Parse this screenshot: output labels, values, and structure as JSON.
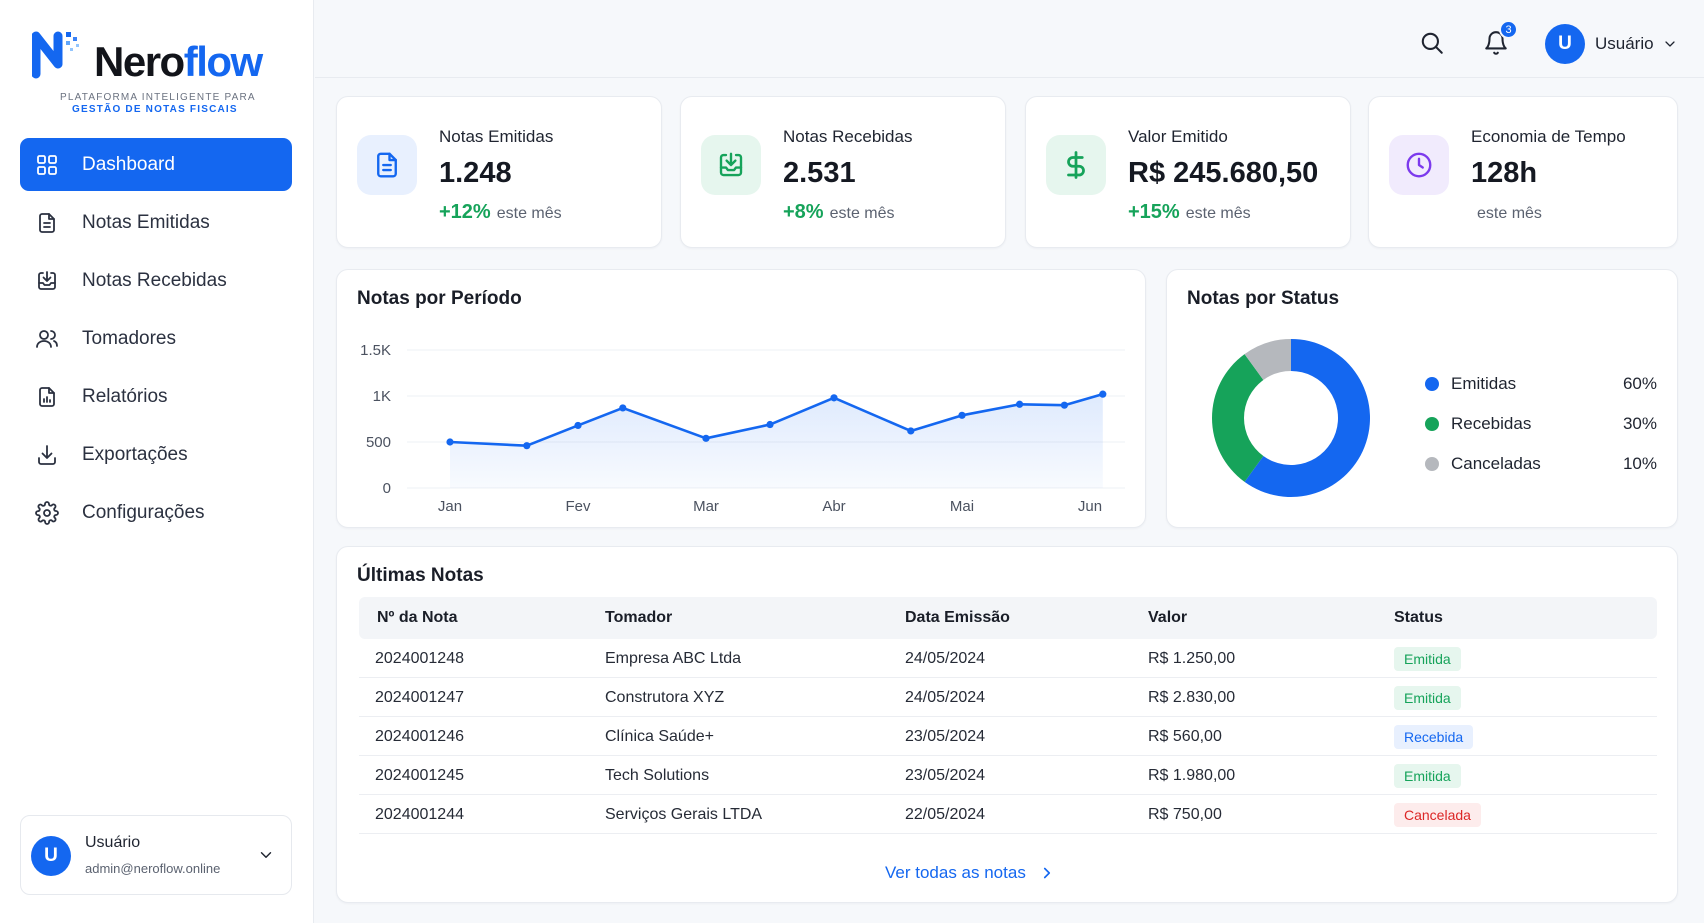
{
  "brand": {
    "name_part1": "Nero",
    "name_part2": "flow",
    "tagline_line1": "PLATAFORMA INTELIGENTE PARA",
    "tagline_line2": "GESTÃO DE NOTAS FISCAIS",
    "accent": "#1467f0"
  },
  "sidebar": {
    "items": [
      {
        "label": "Dashboard",
        "icon": "grid-icon",
        "active": true
      },
      {
        "label": "Notas Emitidas",
        "icon": "document-icon"
      },
      {
        "label": "Notas Recebidas",
        "icon": "inbox-download-icon"
      },
      {
        "label": "Tomadores",
        "icon": "users-icon"
      },
      {
        "label": "Relatórios",
        "icon": "report-icon"
      },
      {
        "label": "Exportações",
        "icon": "export-icon"
      },
      {
        "label": "Configurações",
        "icon": "gear-icon"
      }
    ],
    "user": {
      "initial": "U",
      "name": "Usuário",
      "email": "admin@neroflow.online"
    }
  },
  "topbar": {
    "notifications_count": "3",
    "user_initial": "U",
    "user_name": "Usuário"
  },
  "stats": [
    {
      "label": "Notas Emitidas",
      "value": "1.248",
      "trend": "+12%",
      "trend_suffix": "este mês",
      "icon": "document-icon",
      "icon_color": "#1467f0",
      "icon_bg": "#e8f0fe"
    },
    {
      "label": "Notas Recebidas",
      "value": "2.531",
      "trend": "+8%",
      "trend_suffix": "este mês",
      "icon": "inbox-download-icon",
      "icon_color": "#16a35a",
      "icon_bg": "#e6f6ee"
    },
    {
      "label": "Valor Emitido",
      "value": "R$ 245.680,50",
      "trend": "+15%",
      "trend_suffix": "este mês",
      "icon": "dollar-icon",
      "icon_color": "#16a35a",
      "icon_bg": "#e6f6ee"
    },
    {
      "label": "Economia de Tempo",
      "value": "128h",
      "trend": "",
      "trend_suffix": "este mês",
      "icon": "clock-icon",
      "icon_color": "#7c3aed",
      "icon_bg": "#f1ebfd"
    }
  ],
  "chart_data": [
    {
      "type": "area",
      "title": "Notas por Período",
      "xlabel": "",
      "ylabel": "",
      "x_ticks": [
        "Jan",
        "Fev",
        "Mar",
        "Abr",
        "Mai",
        "Jun"
      ],
      "y_ticks": [
        "0",
        "500",
        "1K",
        "1.5K"
      ],
      "ylim": [
        0,
        1500
      ],
      "grid": true,
      "series": [
        {
          "color": "#1467f0",
          "x": [
            0,
            0.6,
            1.0,
            1.35,
            2.0,
            2.5,
            3.0,
            3.6,
            4.0,
            4.45,
            4.8,
            5.1
          ],
          "values": [
            500,
            460,
            680,
            870,
            540,
            690,
            980,
            620,
            790,
            910,
            900,
            1020
          ]
        }
      ]
    },
    {
      "type": "pie",
      "title": "Notas por Status",
      "donut": true,
      "legend": "right",
      "labels": [
        "Emitidas",
        "Recebidas",
        "Canceladas"
      ],
      "values": [
        60,
        30,
        10
      ],
      "value_labels": [
        "60%",
        "30%",
        "10%"
      ],
      "colors": [
        "#1467f0",
        "#16a35a",
        "#b5b8bd"
      ]
    }
  ],
  "table": {
    "title": "Últimas Notas",
    "columns": [
      "Nº da Nota",
      "Tomador",
      "Data Emissão",
      "Valor",
      "Status"
    ],
    "rows": [
      {
        "numero": "2024001248",
        "tomador": "Empresa ABC Ltda",
        "data": "24/05/2024",
        "valor": "R$ 1.250,00",
        "status": "Emitida",
        "status_color": "#16a35a",
        "status_bg": "#e6f6ee"
      },
      {
        "numero": "2024001247",
        "tomador": "Construtora XYZ",
        "data": "24/05/2024",
        "valor": "R$ 2.830,00",
        "status": "Emitida",
        "status_color": "#16a35a",
        "status_bg": "#e6f6ee"
      },
      {
        "numero": "2024001246",
        "tomador": "Clínica Saúde+",
        "data": "23/05/2024",
        "valor": "R$ 560,00",
        "status": "Recebida",
        "status_color": "#1467f0",
        "status_bg": "#e8f0fe"
      },
      {
        "numero": "2024001245",
        "tomador": "Tech Solutions",
        "data": "23/05/2024",
        "valor": "R$ 1.980,00",
        "status": "Emitida",
        "status_color": "#16a35a",
        "status_bg": "#e6f6ee"
      },
      {
        "numero": "2024001244",
        "tomador": "Serviços Gerais LTDA",
        "data": "22/05/2024",
        "valor": "R$ 750,00",
        "status": "Cancelada",
        "status_color": "#dc2626",
        "status_bg": "#fdecec"
      }
    ],
    "view_all": "Ver todas as notas"
  }
}
